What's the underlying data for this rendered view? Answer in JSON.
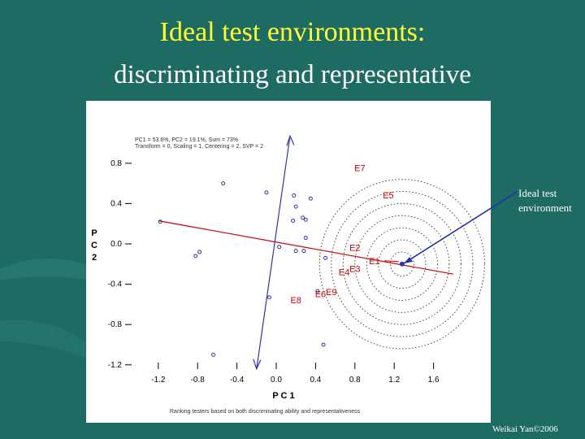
{
  "slide": {
    "title": "Ideal test environments:",
    "subtitle": "discriminating and representative",
    "callout": "Ideal test environment",
    "credit": "Weikai Yan©2006"
  },
  "colors": {
    "background": "#1e6b64",
    "title": "#ffff33",
    "environment": "#cc0000",
    "genotype": "#3333aa",
    "callout_arrow": "#2233aa"
  },
  "chart_data": {
    "type": "scatter",
    "xlabel": "P C 1",
    "ylabel": "P C 2",
    "xlim": [
      -1.4,
      1.8
    ],
    "ylim": [
      -1.3,
      1.0
    ],
    "x_ticks": [
      "-1.2",
      "-0.8",
      "-0.4",
      "0.0",
      "0.4",
      "0.8",
      "1.2",
      "1.6"
    ],
    "y_ticks": [
      "0.8",
      "0.4",
      "0.0",
      "-0.4",
      "-0.8",
      "-1.2"
    ],
    "info_line1": "PC1 = 53.6%, PC2 = 19.1%, Sum = 73%",
    "info_line2": "Transform = 0, Scaling = 1, Centering = 2, SVP = 2",
    "footer": "Ranking testers based on both discriminating ability and representativeness",
    "ideal_point": {
      "x": 1.28,
      "y": -0.2
    },
    "average_axis": {
      "x1": -1.2,
      "y1": 0.23,
      "x2": 1.8,
      "y2": -0.3
    },
    "environments": [
      {
        "label": "E7",
        "x": 0.85,
        "y": 0.72
      },
      {
        "label": "E5",
        "x": 1.14,
        "y": 0.45
      },
      {
        "label": "E2",
        "x": 0.8,
        "y": -0.07
      },
      {
        "label": "E1",
        "x": 1.0,
        "y": -0.2
      },
      {
        "label": "E3",
        "x": 0.8,
        "y": -0.28
      },
      {
        "label": "E4",
        "x": 0.69,
        "y": -0.31
      },
      {
        "label": "E9",
        "x": 0.56,
        "y": -0.51
      },
      {
        "label": "E6",
        "x": 0.45,
        "y": -0.53
      },
      {
        "label": "E8",
        "x": 0.2,
        "y": -0.59
      }
    ],
    "genotypes": [
      {
        "x": -0.54,
        "y": 0.6
      },
      {
        "x": -0.1,
        "y": 0.51
      },
      {
        "x": 0.18,
        "y": 0.48
      },
      {
        "x": 0.35,
        "y": 0.45
      },
      {
        "x": 0.2,
        "y": 0.37
      },
      {
        "x": 0.27,
        "y": 0.26
      },
      {
        "x": 0.3,
        "y": 0.24
      },
      {
        "x": 0.17,
        "y": 0.23
      },
      {
        "x": -1.18,
        "y": 0.22
      },
      {
        "x": 0.3,
        "y": 0.06
      },
      {
        "x": -0.78,
        "y": -0.08
      },
      {
        "x": 0.03,
        "y": -0.03
      },
      {
        "x": 0.2,
        "y": -0.07
      },
      {
        "x": 0.28,
        "y": -0.07
      },
      {
        "x": 0.5,
        "y": -0.14
      },
      {
        "x": -0.82,
        "y": -0.12
      },
      {
        "x": -0.07,
        "y": -0.53
      },
      {
        "x": 0.42,
        "y": -0.47
      },
      {
        "x": -0.64,
        "y": -1.1
      },
      {
        "x": 0.48,
        "y": -1.0
      }
    ],
    "circle_radii": [
      0.12,
      0.24,
      0.36,
      0.48,
      0.6,
      0.72,
      0.84
    ],
    "pc_axis": {
      "x1": 0.14,
      "y1": 1.07,
      "x2": -0.2,
      "y2": -1.24
    }
  }
}
